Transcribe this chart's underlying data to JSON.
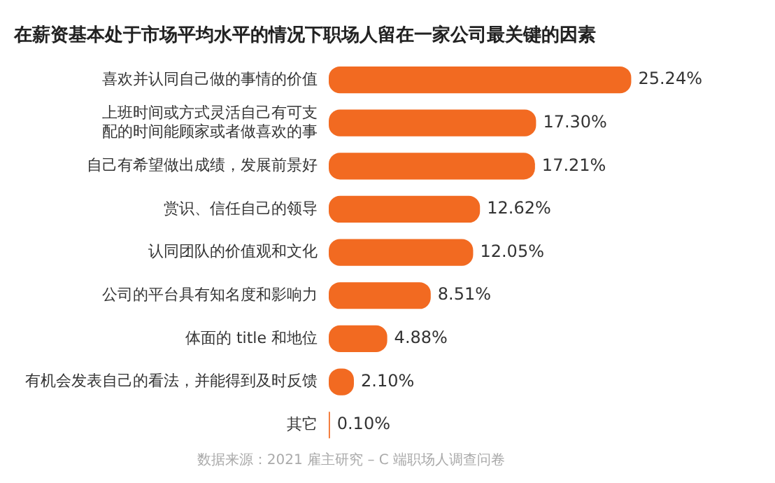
{
  "chart_data": {
    "type": "bar",
    "orientation": "horizontal",
    "title": "在薪资基本处于市场平均水平的情况下职场人留在一家公司最关键的因素",
    "categories": [
      "喜欢并认同自己做的事情的价值",
      "上班时间或方式灵活自己有可支配的时间能顾家或者做喜欢的事",
      "自己有希望做出成绩，发展前景好",
      "赏识、信任自己的领导",
      "认同团队的价值观和文化",
      "公司的平台具有知名度和影响力",
      "体面的 title 和地位",
      "有机会发表自己的看法，并能得到及时反馈",
      "其它"
    ],
    "values": [
      25.24,
      17.3,
      17.21,
      12.62,
      12.05,
      8.51,
      4.88,
      2.1,
      0.1
    ],
    "value_labels": [
      "25.24%",
      "17.30%",
      "17.21%",
      "12.62%",
      "12.05%",
      "8.51%",
      "4.88%",
      "2.10%",
      "0.10%"
    ],
    "color": "#f26a21",
    "grid": false,
    "legend": false,
    "annotations": [
      "数据来源：2021 雇主研究 – C 端职场人调查问卷"
    ]
  }
}
